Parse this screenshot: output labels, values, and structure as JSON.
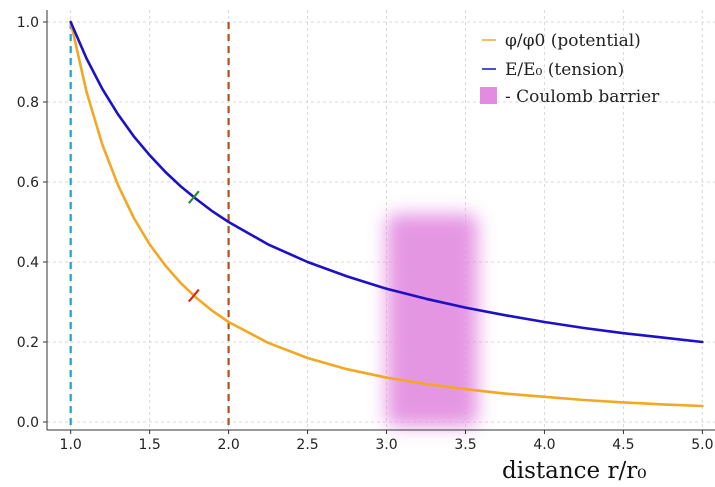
{
  "chart_data": {
    "type": "line",
    "title": "",
    "xlabel": "distance r/r₀",
    "ylabel": "",
    "xlim": [
      0.85,
      5.08
    ],
    "ylim": [
      -0.02,
      1.03
    ],
    "grid": true,
    "x_ticks": [
      1.0,
      1.5,
      2.0,
      2.5,
      3.0,
      3.5,
      4.0,
      4.5,
      5.0
    ],
    "y_ticks": [
      0.0,
      0.2,
      0.4,
      0.6,
      0.8,
      1.0
    ],
    "series": [
      {
        "name": "φ/φ0 (potential)",
        "color": "#f2a823",
        "x": [
          1.0,
          1.1,
          1.2,
          1.3,
          1.4,
          1.5,
          1.6,
          1.7,
          1.8,
          1.9,
          2.0,
          2.25,
          2.5,
          2.75,
          3.0,
          3.25,
          3.5,
          3.75,
          4.0,
          4.25,
          4.5,
          4.75,
          5.0
        ],
        "values": [
          1.0,
          0.826,
          0.694,
          0.592,
          0.51,
          0.444,
          0.391,
          0.346,
          0.309,
          0.277,
          0.25,
          0.198,
          0.16,
          0.132,
          0.111,
          0.095,
          0.082,
          0.071,
          0.063,
          0.055,
          0.049,
          0.044,
          0.04
        ]
      },
      {
        "name": "E/E₀ (tension)",
        "color": "#1c10c8",
        "x": [
          1.0,
          1.1,
          1.2,
          1.3,
          1.4,
          1.5,
          1.6,
          1.7,
          1.8,
          1.9,
          2.0,
          2.25,
          2.5,
          2.75,
          3.0,
          3.25,
          3.5,
          3.75,
          4.0,
          4.25,
          4.5,
          4.75,
          5.0
        ],
        "values": [
          1.0,
          0.909,
          0.833,
          0.769,
          0.714,
          0.667,
          0.625,
          0.588,
          0.556,
          0.526,
          0.5,
          0.444,
          0.4,
          0.364,
          0.333,
          0.308,
          0.286,
          0.267,
          0.25,
          0.235,
          0.222,
          0.211,
          0.2
        ]
      }
    ],
    "vlines": [
      {
        "x": 1.0,
        "color": "#1aa3cf"
      },
      {
        "x": 2.0,
        "color": "#b3501c"
      }
    ],
    "band": {
      "label": "- Coulomb barrier",
      "x_start": 3.0,
      "x_end": 3.5,
      "color": "#e38be0"
    },
    "markers": [
      {
        "x": 1.78,
        "y": 0.562,
        "color": "#2e8b2e"
      },
      {
        "x": 1.78,
        "y": 0.316,
        "color": "#d9261c"
      }
    ],
    "legend": {
      "position": "top-right",
      "entries": [
        "φ/φ0 (potential)",
        "E/E₀ (tension)",
        "- Coulomb barrier"
      ]
    },
    "axes_color": "#333333",
    "grid_color": "#d9d9d9"
  }
}
